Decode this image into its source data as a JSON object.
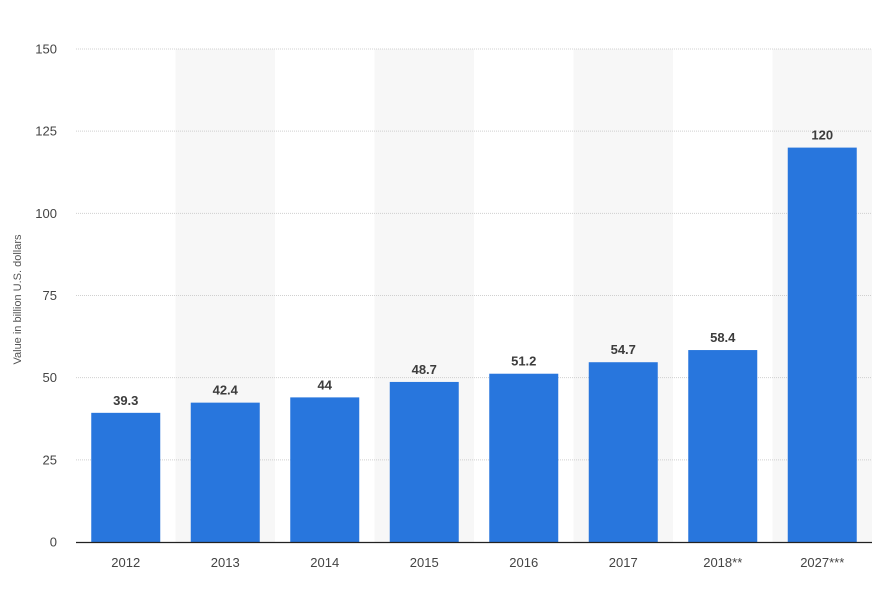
{
  "chart_data": {
    "type": "bar",
    "categories": [
      "2012",
      "2013",
      "2014",
      "2015",
      "2016",
      "2017",
      "2018**",
      "2027***"
    ],
    "series": [
      {
        "values": [
          39.3,
          42.4,
          44,
          48.7,
          51.2,
          54.7,
          58.4,
          120
        ]
      }
    ],
    "value_labels": [
      "39.3",
      "42.4",
      "44",
      "48.7",
      "51.2",
      "54.7",
      "58.4",
      "120"
    ],
    "ylabel": "Value in billion U.S. dollars",
    "xlabel": "",
    "ylim": [
      0,
      150
    ],
    "yticks": [
      0,
      25,
      50,
      75,
      100,
      125,
      150
    ],
    "grid": true,
    "alternating_column_shading": true,
    "legend": "none",
    "colors": {
      "bar": "#2876dd",
      "shade": "#f7f7f7",
      "grid": "#d0d0d0",
      "axis": "#222222"
    }
  }
}
